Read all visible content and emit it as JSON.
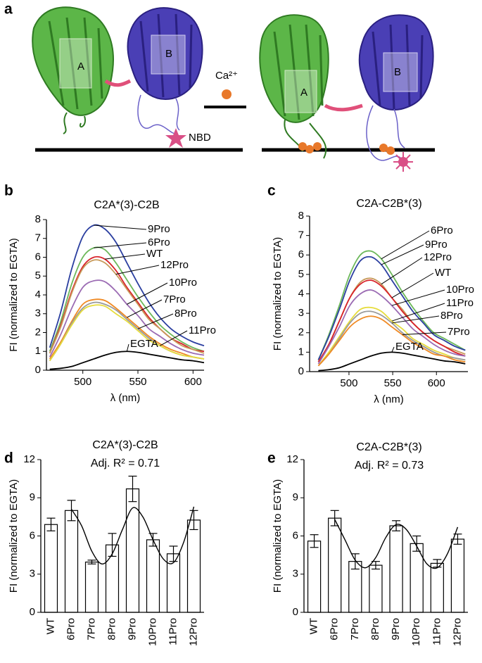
{
  "diagram": {
    "label": "a",
    "domain_a": "A",
    "domain_b": "B",
    "ion": "Ca²⁺",
    "probe": "NBD",
    "domain_a_bound": "A",
    "domain_b_bound": "B"
  },
  "chart_data": [
    {
      "type": "line",
      "label": "b",
      "title": "C2A*(3)-C2B",
      "xlabel": "λ (nm)",
      "ylabel": "FI (normalized to EGTA)",
      "x": [
        470,
        480,
        490,
        500,
        510,
        520,
        530,
        540,
        550,
        560,
        570,
        580,
        590,
        600,
        610
      ],
      "xlim": [
        467,
        610
      ],
      "xticks": [
        500,
        550,
        600
      ],
      "ylim": [
        0,
        8
      ],
      "yticks": [
        0,
        1,
        2,
        3,
        4,
        5,
        6,
        7,
        8
      ],
      "series": [
        {
          "name": "9Pro",
          "color": "#2b3fa0",
          "values": [
            1.2,
            3.1,
            5.4,
            7.1,
            7.7,
            7.5,
            6.8,
            5.7,
            4.6,
            3.6,
            2.8,
            2.2,
            1.8,
            1.5,
            1.3
          ]
        },
        {
          "name": "6Pro",
          "color": "#6cb85a",
          "values": [
            1.0,
            2.6,
            4.6,
            6.0,
            6.5,
            6.4,
            5.7,
            4.8,
            3.9,
            3.1,
            2.4,
            1.9,
            1.5,
            1.2,
            1.0
          ]
        },
        {
          "name": "WT",
          "color": "#d8232a",
          "values": [
            0.9,
            2.4,
            4.2,
            5.5,
            6.0,
            5.9,
            5.3,
            4.4,
            3.6,
            2.8,
            2.2,
            1.7,
            1.4,
            1.1,
            1.0
          ]
        },
        {
          "name": "12Pro",
          "color": "#c79a5a",
          "values": [
            0.9,
            2.3,
            4.1,
            5.4,
            5.85,
            5.7,
            5.1,
            4.3,
            3.5,
            2.7,
            2.2,
            1.7,
            1.3,
            1.1,
            0.9
          ]
        },
        {
          "name": "10Pro",
          "color": "#9b6bb3",
          "values": [
            0.7,
            1.9,
            3.3,
            4.4,
            4.75,
            4.7,
            4.2,
            3.5,
            2.9,
            2.2,
            1.8,
            1.4,
            1.1,
            0.9,
            0.8
          ]
        },
        {
          "name": "7Pro",
          "color": "#f08a24",
          "values": [
            0.6,
            1.5,
            2.6,
            3.5,
            3.75,
            3.7,
            3.3,
            2.8,
            2.3,
            1.8,
            1.4,
            1.1,
            0.9,
            0.7,
            0.6
          ]
        },
        {
          "name": "8Pro",
          "color": "#9a9a9a",
          "values": [
            0.5,
            1.4,
            2.5,
            3.3,
            3.6,
            3.5,
            3.2,
            2.7,
            2.2,
            1.7,
            1.3,
            1.0,
            0.8,
            0.7,
            0.6
          ]
        },
        {
          "name": "11Pro",
          "color": "#e6dc3c",
          "values": [
            0.5,
            1.4,
            2.4,
            3.2,
            3.45,
            3.4,
            3.0,
            2.6,
            2.1,
            1.6,
            1.3,
            1.0,
            0.8,
            0.7,
            0.6
          ]
        },
        {
          "name": "EGTA",
          "color": "#000000",
          "values": [
            0.05,
            0.1,
            0.2,
            0.4,
            0.6,
            0.8,
            0.95,
            1.0,
            0.95,
            0.85,
            0.75,
            0.65,
            0.55,
            0.5,
            0.4
          ]
        }
      ]
    },
    {
      "type": "line",
      "label": "c",
      "title": "C2A-C2B*(3)",
      "xlabel": "λ (nm)",
      "ylabel": "FI (normalized to EGTA)",
      "x": [
        465,
        477,
        489,
        501,
        513,
        525,
        537,
        549,
        561,
        573,
        585,
        597,
        609,
        621,
        633
      ],
      "xlim": [
        455,
        636
      ],
      "xticks": [
        500,
        550,
        600
      ],
      "ylim": [
        0,
        8
      ],
      "yticks": [
        0,
        1,
        2,
        3,
        4,
        5,
        6,
        7,
        8
      ],
      "series": [
        {
          "name": "6Pro",
          "color": "#6cb85a",
          "values": [
            0.6,
            1.9,
            3.4,
            5.0,
            6.0,
            6.2,
            5.8,
            5.0,
            4.1,
            3.3,
            2.6,
            2.0,
            1.7,
            1.4,
            1.1
          ]
        },
        {
          "name": "9Pro",
          "color": "#2b3fa0",
          "values": [
            0.6,
            1.8,
            3.2,
            4.7,
            5.7,
            5.9,
            5.5,
            4.7,
            3.9,
            3.1,
            2.5,
            1.9,
            1.6,
            1.3,
            1.1
          ]
        },
        {
          "name": "12Pro",
          "color": "#c79a5a",
          "values": [
            0.5,
            1.4,
            2.6,
            3.8,
            4.6,
            4.8,
            4.5,
            3.8,
            3.2,
            2.5,
            2.0,
            1.6,
            1.3,
            1.1,
            0.9
          ]
        },
        {
          "name": "WT",
          "color": "#d8232a",
          "values": [
            0.5,
            1.4,
            2.6,
            3.8,
            4.5,
            4.7,
            4.4,
            3.8,
            3.1,
            2.5,
            2.0,
            1.6,
            1.3,
            1.0,
            0.8
          ]
        },
        {
          "name": "10Pro",
          "color": "#9b6bb3",
          "values": [
            0.4,
            1.3,
            2.3,
            3.4,
            4.0,
            4.2,
            3.9,
            3.4,
            2.8,
            2.2,
            1.8,
            1.4,
            1.1,
            0.9,
            0.8
          ]
        },
        {
          "name": "11Pro",
          "color": "#e6dc3c",
          "values": [
            0.3,
            1.0,
            1.8,
            2.6,
            3.2,
            3.3,
            3.1,
            2.6,
            2.2,
            1.7,
            1.4,
            1.1,
            0.9,
            0.7,
            0.6
          ]
        },
        {
          "name": "8Pro",
          "color": "#9a9a9a",
          "values": [
            0.3,
            0.9,
            1.7,
            2.5,
            3.0,
            3.1,
            2.9,
            2.5,
            2.0,
            1.6,
            1.3,
            1.0,
            0.8,
            0.7,
            0.6
          ]
        },
        {
          "name": "7Pro",
          "color": "#f08a24",
          "values": [
            0.3,
            0.9,
            1.6,
            2.3,
            2.7,
            2.85,
            2.7,
            2.3,
            1.9,
            1.5,
            1.2,
            0.9,
            0.8,
            0.6,
            0.5
          ]
        },
        {
          "name": "EGTA",
          "color": "#000000",
          "values": [
            0.05,
            0.1,
            0.2,
            0.4,
            0.6,
            0.8,
            0.95,
            1.0,
            0.95,
            0.85,
            0.75,
            0.65,
            0.55,
            0.5,
            0.4
          ]
        }
      ]
    },
    {
      "type": "bar",
      "label": "d",
      "title": "C2A*(3)-C2B",
      "subtitle": "Adj. R² = 0.71",
      "ylabel": "FI (normalized to EGTA)",
      "categories": [
        "WT",
        "6Pro",
        "7Pro",
        "8Pro",
        "9Pro",
        "10Pro",
        "11Pro",
        "12Pro"
      ],
      "values": [
        6.9,
        8.0,
        3.95,
        5.3,
        9.7,
        5.7,
        4.6,
        7.25
      ],
      "errors": [
        0.5,
        0.8,
        0.15,
        0.9,
        1.0,
        0.5,
        0.6,
        0.75
      ],
      "color": "#ffffff",
      "ylim": [
        0,
        12
      ],
      "yticks": [
        0,
        3,
        6,
        9,
        12
      ],
      "fit": {
        "x": [
          1,
          1.5,
          2,
          2.5,
          3,
          3.5,
          4,
          4.5,
          5,
          5.5,
          6,
          6.5,
          7
        ],
        "values": [
          8.1,
          6.8,
          4.8,
          3.8,
          4.6,
          6.5,
          8.2,
          7.5,
          5.7,
          4.2,
          3.9,
          5.5,
          8.3
        ]
      }
    },
    {
      "type": "bar",
      "label": "e",
      "title": "C2A-C2B*(3)",
      "subtitle": "Adj. R² = 0.73",
      "ylabel": "FI (normalized to EGTA)",
      "categories": [
        "WT",
        "6Pro",
        "7Pro",
        "8Pro",
        "9Pro",
        "10Pro",
        "11Pro",
        "12Pro"
      ],
      "values": [
        5.6,
        7.4,
        4.0,
        3.7,
        6.8,
        5.4,
        3.85,
        5.75
      ],
      "errors": [
        0.5,
        0.6,
        0.6,
        0.3,
        0.4,
        0.6,
        0.3,
        0.4
      ],
      "color": "#ffffff",
      "ylim": [
        0,
        12
      ],
      "yticks": [
        0,
        3,
        6,
        9,
        12
      ],
      "fit": {
        "x": [
          1,
          1.5,
          2,
          2.5,
          3,
          3.5,
          4,
          4.5,
          5,
          5.5,
          6,
          6.5,
          7
        ],
        "values": [
          7.3,
          5.7,
          4.1,
          3.5,
          4.3,
          5.9,
          6.9,
          6.5,
          5.2,
          3.8,
          3.5,
          4.6,
          6.7
        ]
      }
    }
  ]
}
